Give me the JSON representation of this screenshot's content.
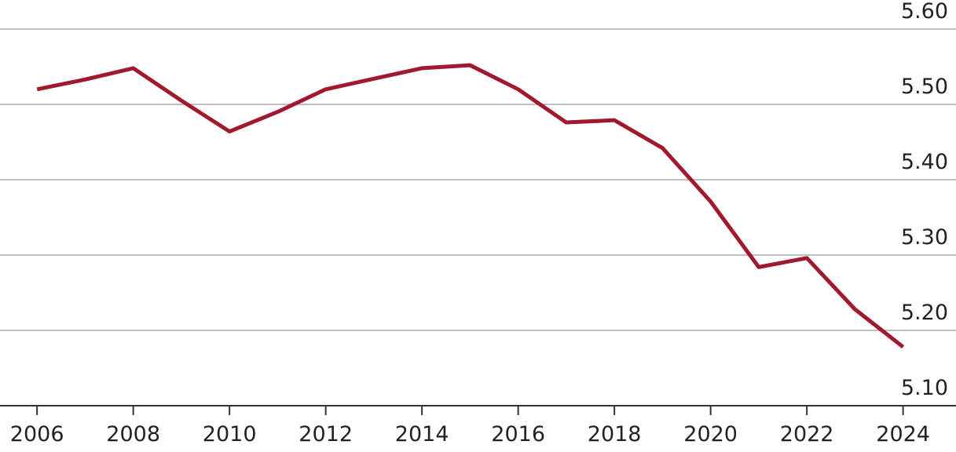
{
  "chart_data": {
    "type": "line",
    "x": [
      2006,
      2007,
      2008,
      2009,
      2010,
      2011,
      2012,
      2013,
      2014,
      2015,
      2016,
      2017,
      2018,
      2019,
      2020,
      2021,
      2022,
      2023,
      2024
    ],
    "series": [
      {
        "color": "#a0192f",
        "values": [
          5.52,
          5.533,
          5.548,
          5.505,
          5.464,
          5.49,
          5.52,
          5.534,
          5.548,
          5.552,
          5.52,
          5.476,
          5.479,
          5.442,
          5.371,
          5.284,
          5.296,
          5.228,
          5.178
        ]
      }
    ],
    "xlim": [
      2005.23,
      2025.1
    ],
    "xticks": [
      2006,
      2008,
      2010,
      2012,
      2014,
      2016,
      2018,
      2020,
      2022,
      2024
    ],
    "ylim": [
      5.1,
      5.64
    ],
    "yticks": [
      {
        "value": 5.1,
        "label": "5.10"
      },
      {
        "value": 5.2,
        "label": "5.20"
      },
      {
        "value": 5.3,
        "label": "5.30"
      },
      {
        "value": 5.4,
        "label": "5.40"
      },
      {
        "value": 5.5,
        "label": "5.50"
      },
      {
        "value": 5.6,
        "label": "5.60"
      }
    ],
    "grid": true
  }
}
